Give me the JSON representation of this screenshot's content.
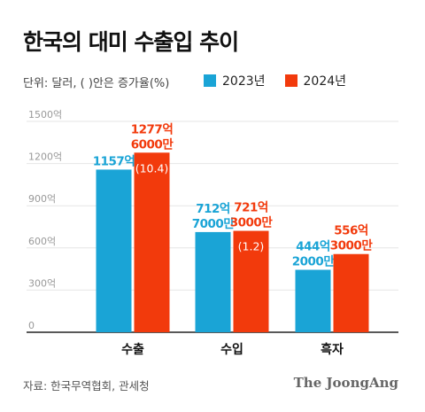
{
  "title": "한국의 대미 수출입 추이",
  "unit_note": "단위: 달러, (  )안은 증가율(%)",
  "source": "자료: 한국무역협회, 관세청",
  "brand": "The JoongAng",
  "colors": {
    "series_2023": "#1aa4d6",
    "series_2024": "#f23a0c",
    "grid": "#e6e6e6",
    "axis": "#222222",
    "tick_text": "#999999"
  },
  "chart_data": {
    "type": "bar",
    "title": "한국의 대미 수출입 추이",
    "xlabel": "",
    "ylabel": "",
    "categories": [
      "수출",
      "수입",
      "흑자"
    ],
    "ylim": [
      0,
      1500
    ],
    "yticks": [
      0,
      300,
      600,
      900,
      1200,
      1500
    ],
    "ytick_labels": [
      "0",
      "300억",
      "600억",
      "900억",
      "1200억",
      "1500억"
    ],
    "grid": true,
    "legend_position": "top",
    "series": [
      {
        "name": "2023년",
        "values": [
          1157,
          712.7,
          444.2
        ],
        "labels": [
          [
            "1157억"
          ],
          [
            "712억",
            "7000만"
          ],
          [
            "444억",
            "2000만"
          ]
        ],
        "annotations": [
          "",
          "",
          ""
        ]
      },
      {
        "name": "2024년",
        "values": [
          1277.6,
          721.3,
          556.3
        ],
        "labels": [
          [
            "1277억",
            "6000만"
          ],
          [
            "721억",
            "3000만"
          ],
          [
            "556억",
            "3000만"
          ]
        ],
        "annotations": [
          "(10.4)",
          "(1.2)",
          ""
        ]
      }
    ]
  }
}
